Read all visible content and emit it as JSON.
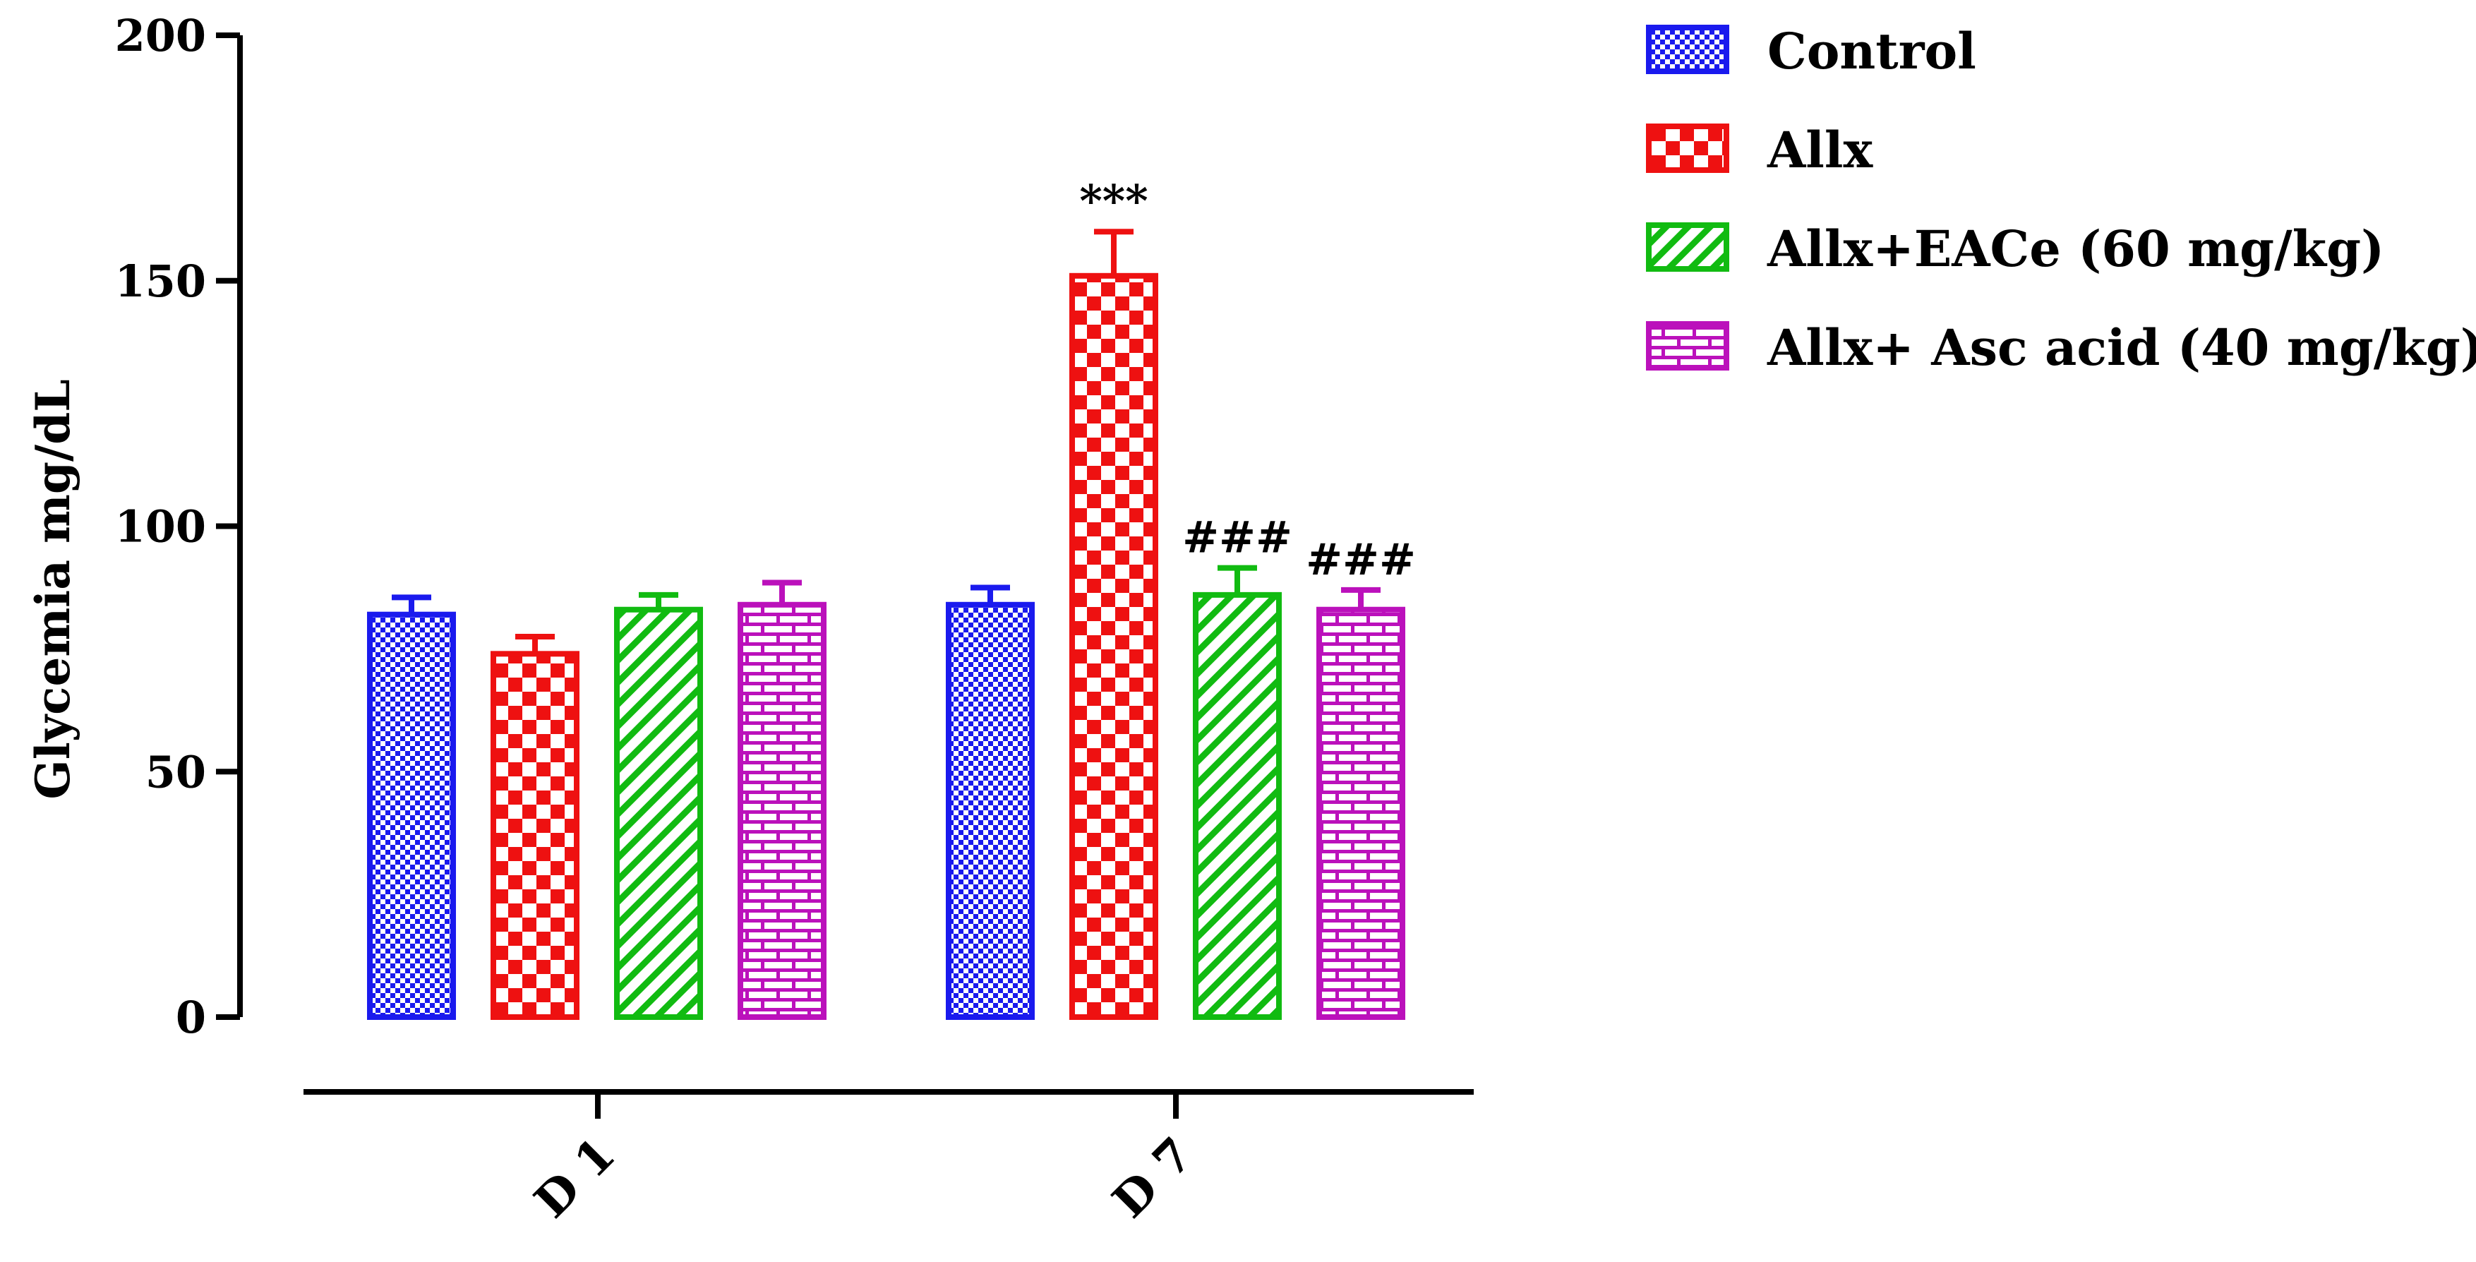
{
  "chart_data": {
    "type": "bar",
    "title": "",
    "xlabel": "",
    "ylabel": "Glycemia mg/dL",
    "ylim": [
      0,
      200
    ],
    "yticks": [
      "0",
      "50",
      "100",
      "150",
      "200"
    ],
    "categories": [
      "D 1",
      "D 7"
    ],
    "series": [
      {
        "name": "Control",
        "color": "#1a1aee",
        "pattern": "checker-fine",
        "values": [
          82,
          84
        ],
        "errors": [
          3.5,
          3.5
        ],
        "annotations": [
          "",
          ""
        ]
      },
      {
        "name": "Allx",
        "color": "#ee1111",
        "pattern": "checker-coarse",
        "values": [
          74,
          151
        ],
        "errors": [
          3.5,
          9
        ],
        "annotations": [
          "",
          "***"
        ]
      },
      {
        "name": "Allx+EACe (60 mg/kg)",
        "color": "#11bb11",
        "pattern": "diagonal",
        "values": [
          83,
          86
        ],
        "errors": [
          3,
          5.5
        ],
        "annotations": [
          "",
          "###"
        ]
      },
      {
        "name": "Allx+ Asc acid (40 mg/kg)",
        "color": "#bb11bb",
        "pattern": "brick",
        "values": [
          84,
          83
        ],
        "errors": [
          4.5,
          4
        ],
        "annotations": [
          "",
          "###"
        ]
      }
    ],
    "legend_position": "top-right",
    "grid": false
  }
}
